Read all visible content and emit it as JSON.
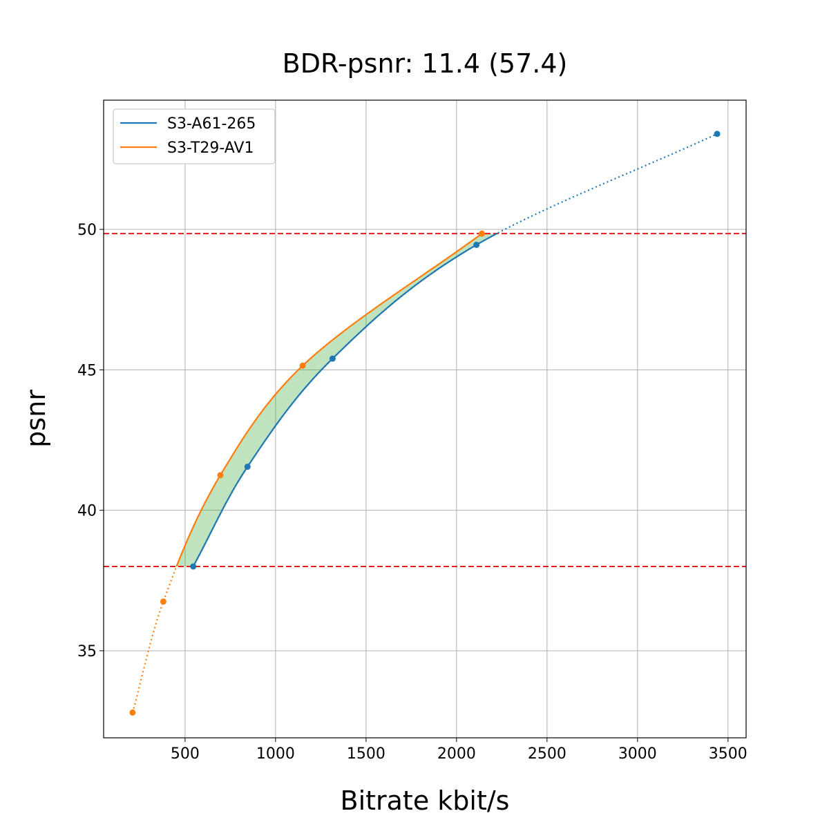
{
  "chart_data": {
    "type": "line",
    "title": "BDR-psnr: 11.4 (57.4)",
    "xlabel": "Bitrate kbit/s",
    "ylabel": "psnr",
    "xlim": [
      50,
      3600
    ],
    "ylim": [
      31.9,
      54.6
    ],
    "xticks": [
      500,
      1000,
      1500,
      2000,
      2500,
      3000,
      3500
    ],
    "yticks": [
      35,
      40,
      45,
      50
    ],
    "grid": true,
    "legend_position": "top-left",
    "hlines": [
      49.85,
      38.0
    ],
    "hline_color": "#e41a1c",
    "series": [
      {
        "name": "S3-A61-265",
        "color": "#1f77b4",
        "points": [
          [
            545,
            38.0
          ],
          [
            845,
            41.55
          ],
          [
            1315,
            45.4
          ],
          [
            2110,
            49.45
          ],
          [
            3440,
            53.4
          ]
        ]
      },
      {
        "name": "S3-T29-AV1",
        "color": "#ff7f0e",
        "points": [
          [
            210,
            32.8
          ],
          [
            380,
            36.75
          ],
          [
            695,
            41.25
          ],
          [
            1150,
            45.15
          ],
          [
            2140,
            49.85
          ]
        ]
      }
    ],
    "fill_color": "#2ca02c"
  }
}
